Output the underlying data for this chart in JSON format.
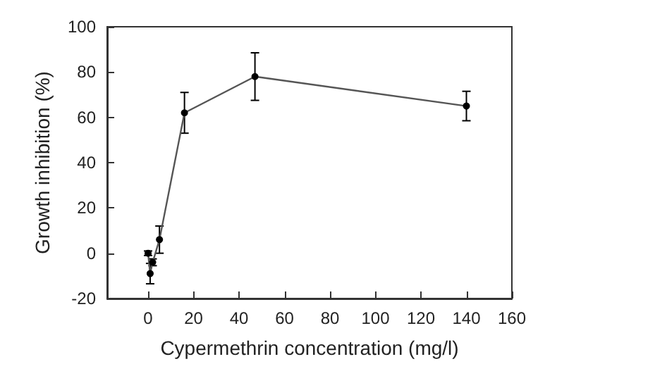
{
  "chart_data": {
    "type": "line",
    "xlabel": "Cypermethrin concentration (mg/l)",
    "ylabel": "Growth inhibition (%)",
    "x": [
      0,
      0.9,
      2,
      5,
      16,
      47,
      140
    ],
    "series": [
      {
        "color": "#000000",
        "values": [
          0,
          -9,
          -4,
          6,
          62,
          78,
          65
        ],
        "errors": [
          1,
          4.5,
          1.5,
          6,
          9,
          10.5,
          6.5
        ]
      }
    ],
    "xlim": [
      -18,
      160
    ],
    "xticks": [
      0,
      20,
      40,
      60,
      80,
      100,
      120,
      140,
      160
    ],
    "ylim": [
      -20,
      100
    ],
    "yticks": [
      -20,
      0,
      20,
      40,
      60,
      80,
      100
    ],
    "marker": "circle",
    "line_style": "solid"
  }
}
